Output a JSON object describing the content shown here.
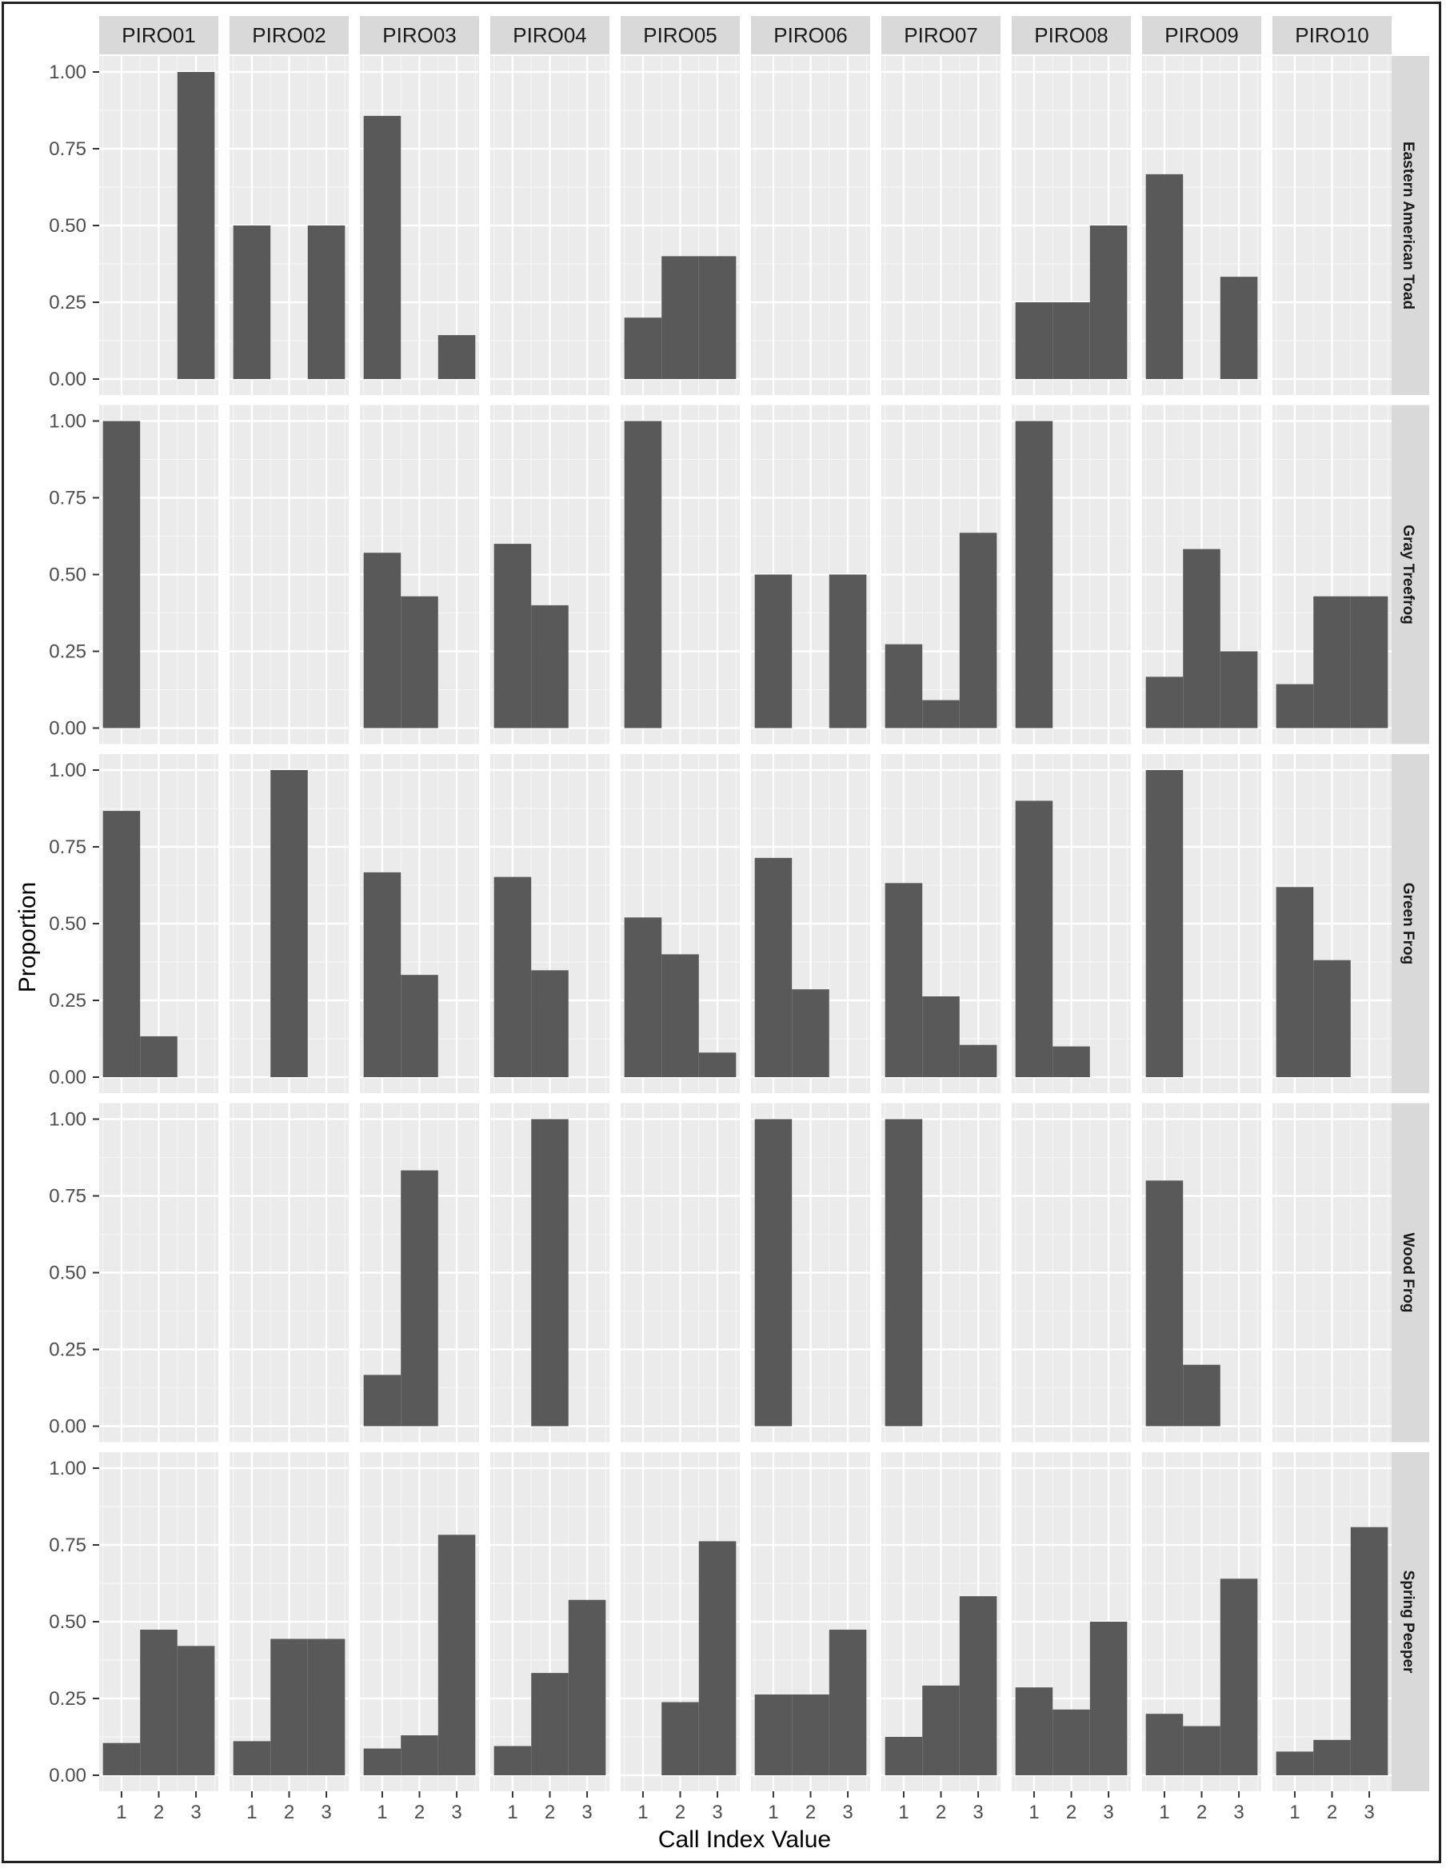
{
  "colors": {
    "panel_background": "#ebebeb",
    "grid_major": "#ffffff",
    "grid_minor": "#f5f5f5",
    "strip_background": "#d9d9d9",
    "bar_fill": "#595959",
    "tick_text": "#4d4d4d",
    "frame": "#222222"
  },
  "chart_data": {
    "type": "bar",
    "title": "",
    "xlabel": "Call Index Value",
    "ylabel": "Proportion",
    "ylim": [
      0,
      1
    ],
    "y_ticks": [
      "0.00",
      "0.25",
      "0.50",
      "0.75",
      "1.00"
    ],
    "x_ticks": [
      "1",
      "2",
      "3"
    ],
    "grid": true,
    "columns": [
      "PIRO01",
      "PIRO02",
      "PIRO03",
      "PIRO04",
      "PIRO05",
      "PIRO06",
      "PIRO07",
      "PIRO08",
      "PIRO09",
      "PIRO10"
    ],
    "rows": [
      "Eastern American Toad",
      "Gray Treefrog",
      "Green Frog",
      "Wood Frog",
      "Spring Peeper"
    ],
    "values": [
      [
        [
          0,
          0,
          1.0
        ],
        [
          0.5,
          0,
          0.5
        ],
        [
          0.857,
          0,
          0.143
        ],
        [
          0,
          0,
          0
        ],
        [
          0.2,
          0.4,
          0.4
        ],
        [
          0,
          0,
          0
        ],
        [
          0,
          0,
          0
        ],
        [
          0.25,
          0.25,
          0.5
        ],
        [
          0.667,
          0,
          0.333
        ],
        [
          0,
          0,
          0
        ]
      ],
      [
        [
          1.0,
          0,
          0
        ],
        [
          0,
          0,
          0
        ],
        [
          0.571,
          0.429,
          0
        ],
        [
          0.6,
          0.4,
          0
        ],
        [
          1.0,
          0,
          0
        ],
        [
          0.5,
          0,
          0.5
        ],
        [
          0.273,
          0.091,
          0.636
        ],
        [
          1.0,
          0,
          0
        ],
        [
          0.167,
          0.583,
          0.25
        ],
        [
          0.143,
          0.429,
          0.429
        ]
      ],
      [
        [
          0.867,
          0.133,
          0
        ],
        [
          0,
          1.0,
          0
        ],
        [
          0.667,
          0.333,
          0
        ],
        [
          0.652,
          0.348,
          0
        ],
        [
          0.52,
          0.4,
          0.08
        ],
        [
          0.714,
          0.286,
          0
        ],
        [
          0.632,
          0.263,
          0.105
        ],
        [
          0.9,
          0.1,
          0
        ],
        [
          1.0,
          0,
          0
        ],
        [
          0.619,
          0.381,
          0
        ]
      ],
      [
        [
          0,
          0,
          0
        ],
        [
          0,
          0,
          0
        ],
        [
          0.167,
          0.833,
          0
        ],
        [
          0,
          1.0,
          0
        ],
        [
          0,
          0,
          0
        ],
        [
          1.0,
          0,
          0
        ],
        [
          1.0,
          0,
          0
        ],
        [
          0,
          0,
          0
        ],
        [
          0.8,
          0.2,
          0
        ],
        [
          0,
          0,
          0
        ]
      ],
      [
        [
          0.105,
          0.474,
          0.421
        ],
        [
          0.111,
          0.444,
          0.444
        ],
        [
          0.087,
          0.13,
          0.783
        ],
        [
          0.095,
          0.333,
          0.571
        ],
        [
          0,
          0.238,
          0.762
        ],
        [
          0.263,
          0.263,
          0.474
        ],
        [
          0.125,
          0.292,
          0.583
        ],
        [
          0.286,
          0.214,
          0.5
        ],
        [
          0.2,
          0.16,
          0.64
        ],
        [
          0.077,
          0.115,
          0.808
        ]
      ]
    ]
  }
}
